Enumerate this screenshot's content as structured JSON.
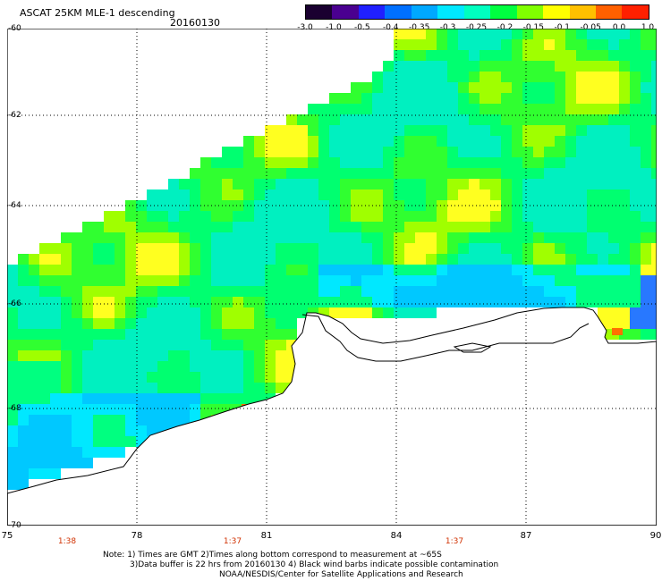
{
  "title": "ASCAT 25KM MLE-1 descending",
  "date": "20160130",
  "colorbar": {
    "labels": [
      "-3.0",
      "-1.0",
      "-0.5",
      "-0.4",
      "-0.35",
      "-0.3",
      "-0.25",
      "-0.2",
      "-0.15",
      "-0.1",
      "-0.05",
      "0.0",
      "1.0"
    ],
    "colors": [
      "#1a0030",
      "#4a0090",
      "#2020ff",
      "#0070ff",
      "#00a8ff",
      "#00e8ff",
      "#00ffc0",
      "#00ff40",
      "#80ff00",
      "#ffff00",
      "#ffc000",
      "#ff6000",
      "#ff2000"
    ]
  },
  "axes": {
    "x_labels": [
      "75",
      "78",
      "81",
      "84",
      "87",
      "90"
    ],
    "y_labels": [
      "-60",
      "-62",
      "-64",
      "-66",
      "-68",
      "-70"
    ],
    "times": [
      "1:38",
      "1:37",
      "1:37"
    ]
  },
  "notes": {
    "line1": "Note: 1) Times are GMT 2)Times along bottom correspond to measurement at ~65S",
    "line2": "3)Data buffer is 22 hrs from 20160130 4) Black wind barbs indicate possible contamination",
    "line3": "NOAA/NESDIS/Center for Satellite Applications and Research"
  },
  "map": {
    "lon_range": [
      75,
      90
    ],
    "lat_range": [
      -70,
      -60
    ],
    "grid": "dotted",
    "coastline_color": "#000000"
  }
}
